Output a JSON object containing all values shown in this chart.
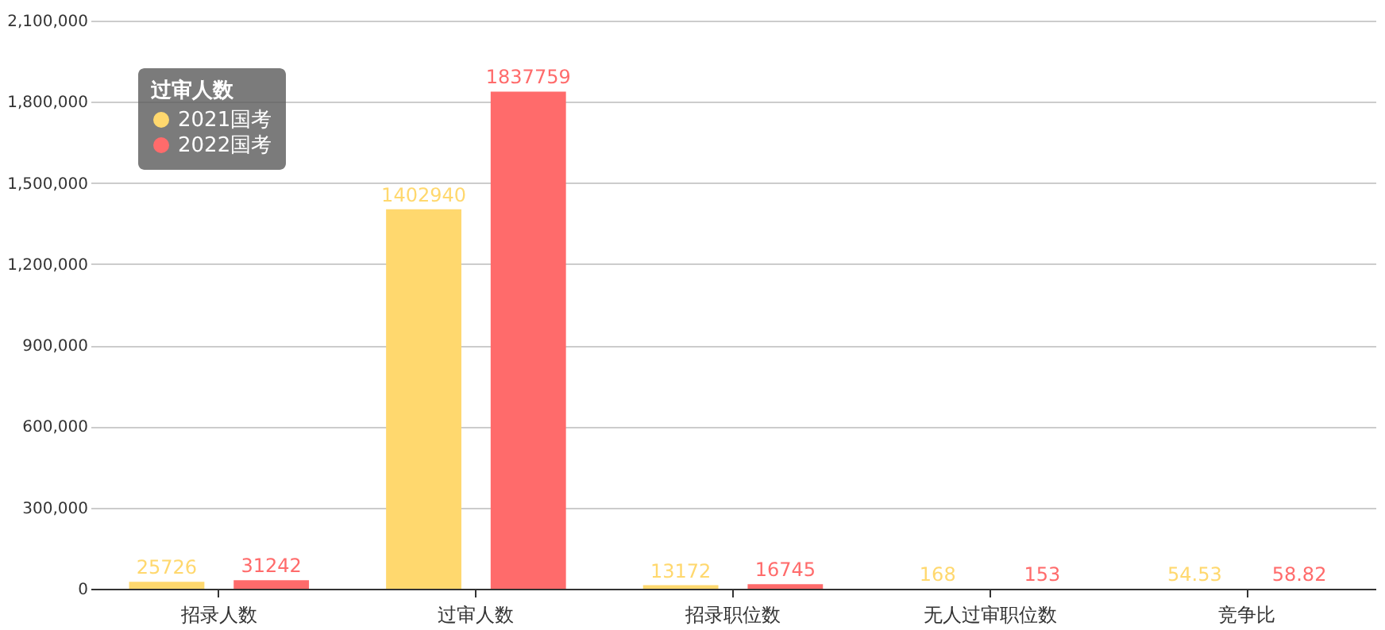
{
  "chart_data": {
    "type": "bar",
    "categories": [
      "招录人数",
      "过审人数",
      "招录职位数",
      "无人过审职位数",
      "竞争比"
    ],
    "series": [
      {
        "name": "2021国考",
        "color": "#ffd86e",
        "values": [
          25726,
          1402940,
          13172,
          168,
          54.53
        ]
      },
      {
        "name": "2022国考",
        "color": "#ff6b6b",
        "values": [
          31242,
          1837759,
          16745,
          153,
          58.82
        ]
      }
    ],
    "ylim": [
      0,
      2100000
    ],
    "yticks": [
      0,
      {
        "value": 300000,
        "label": "300,000"
      },
      {
        "value": 600000,
        "label": "600,000"
      },
      {
        "value": 900000,
        "label": "900,000"
      },
      {
        "value": 1200000,
        "label": "1,200,000"
      },
      {
        "value": 1500000,
        "label": "1,500,000"
      },
      {
        "value": 1800000,
        "label": "1,800,000"
      },
      {
        "value": 2100000,
        "label": "2,100,000"
      }
    ],
    "grid": "y",
    "data_labels": true,
    "legend": "top left",
    "legend_title": "过审人数"
  }
}
